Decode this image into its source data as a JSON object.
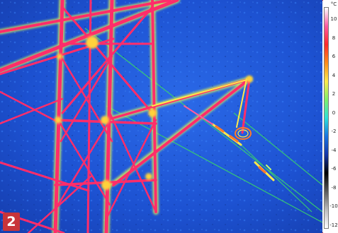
{
  "figure_number": "2",
  "temperature_scale": {
    "unit": "°C",
    "ticks": [
      "10",
      "8",
      "6",
      "4",
      "2",
      "0",
      "-2",
      "-4",
      "-6",
      "-8",
      "-10",
      "-12"
    ],
    "range_min": -13,
    "range_max": 11
  },
  "colors": {
    "background_cold": "#1c4fcf",
    "hot": "#ff2d6a",
    "warm": "#ffe34a",
    "frame_border": "#cc1f2a",
    "badge": "#c8343a"
  },
  "palette_stops": [
    "#ffffff",
    "#ff5aa0",
    "#ff2a2a",
    "#ff8c1a",
    "#ffe94a",
    "#7ff06a",
    "#2ee0d8",
    "#1a74e0",
    "#1636a8",
    "#000000",
    "#5a5a5a",
    "#bdbdbd",
    "#ffffff"
  ]
}
